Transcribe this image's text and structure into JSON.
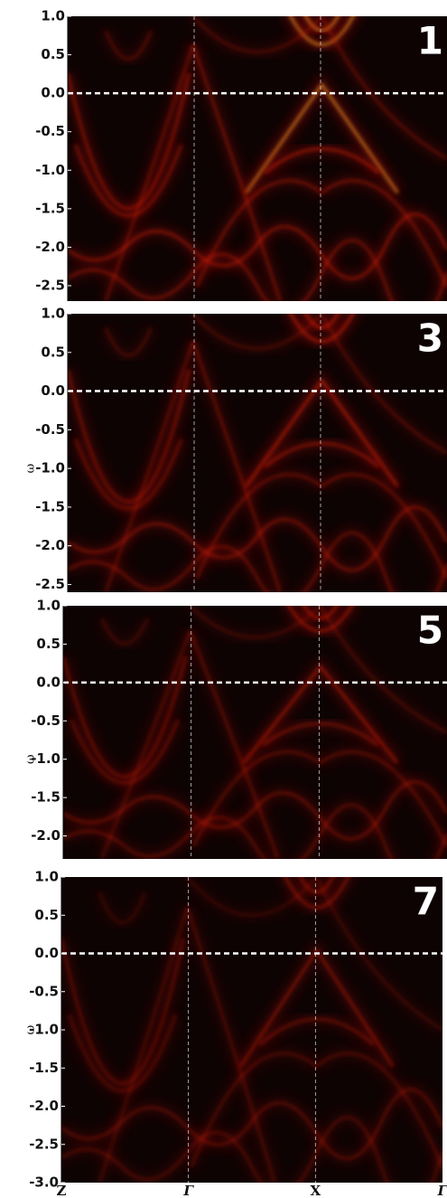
{
  "chart_data": [
    {
      "type": "heatmap",
      "label": "1",
      "ylim": [
        -2.7,
        1.0
      ],
      "yticks": [
        {
          "value": 1.0,
          "label": "1.0"
        },
        0.5,
        {
          "value": 0,
          "label": "0.0"
        },
        -0.5,
        {
          "value": -1.0,
          "label": "-1.0"
        },
        -1.5,
        {
          "value": -2.0,
          "label": "-2.0"
        },
        -2.5
      ]
    },
    {
      "type": "heatmap",
      "label": "3",
      "ylabel": "ω",
      "ylim": [
        -2.6,
        1.0
      ],
      "yticks": [
        {
          "value": 1.0,
          "label": "1.0"
        },
        0.5,
        {
          "value": 0,
          "label": "0.0"
        },
        -0.5,
        {
          "value": -1.0,
          "label": "-1.0"
        },
        -1.5,
        {
          "value": -2.0,
          "label": "-2.0"
        },
        -2.5
      ]
    },
    {
      "type": "heatmap",
      "label": "5",
      "ylabel": "ω",
      "ylim": [
        -2.3,
        1.0
      ],
      "yticks": [
        {
          "value": 1.0,
          "label": "1.0"
        },
        0.5,
        {
          "value": 0,
          "label": "0.0"
        },
        -0.5,
        {
          "value": -1.0,
          "label": "-1.0"
        },
        -1.5,
        {
          "value": -2.0,
          "label": "-2.0"
        }
      ]
    },
    {
      "type": "heatmap",
      "label": "7",
      "ylabel": "ω",
      "categories": [
        "Z",
        "Γ",
        "X",
        "Γ"
      ],
      "ylim": [
        -3.0,
        1.0
      ],
      "yticks": [
        {
          "value": 1.0,
          "label": "1.0"
        },
        0.5,
        {
          "value": 0,
          "label": "0.0"
        },
        -0.5,
        {
          "value": -1.0,
          "label": "-1.0"
        },
        -1.5,
        {
          "value": -2.0,
          "label": "-2.0"
        },
        -2.5,
        {
          "value": -3.0,
          "label": "-3.0"
        }
      ]
    }
  ]
}
